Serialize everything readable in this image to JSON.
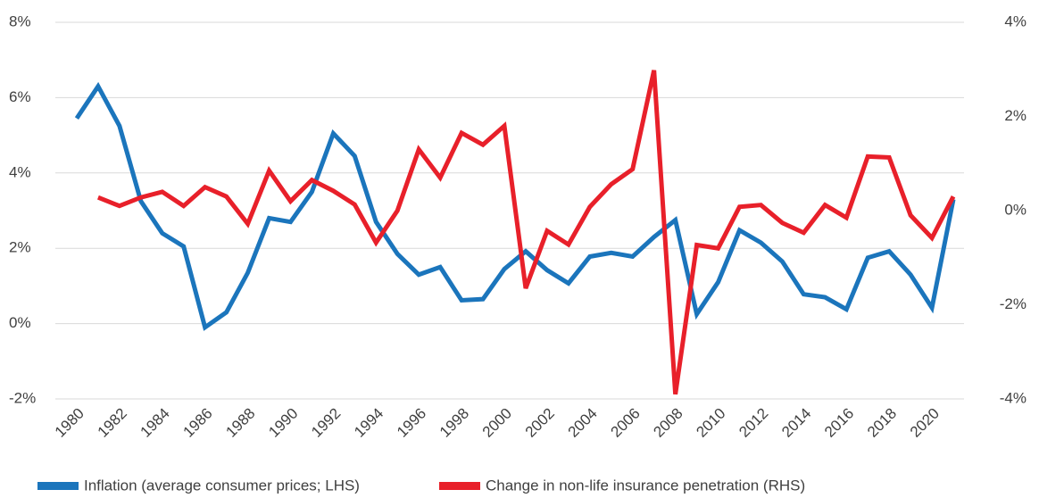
{
  "chart_data": {
    "type": "line",
    "x": [
      1980,
      1981,
      1982,
      1983,
      1984,
      1985,
      1986,
      1987,
      1988,
      1989,
      1990,
      1991,
      1992,
      1993,
      1994,
      1995,
      1996,
      1997,
      1998,
      1999,
      2000,
      2001,
      2002,
      2003,
      2004,
      2005,
      2006,
      2007,
      2008,
      2009,
      2010,
      2011,
      2012,
      2013,
      2014,
      2015,
      2016,
      2017,
      2018,
      2019,
      2020,
      2021
    ],
    "xlim": [
      1979,
      2021.5
    ],
    "xticks": [
      1980,
      1982,
      1984,
      1986,
      1988,
      1990,
      1992,
      1994,
      1996,
      1998,
      2000,
      2002,
      2004,
      2006,
      2008,
      2010,
      2012,
      2014,
      2016,
      2018,
      2020
    ],
    "ylim": [
      -2,
      8
    ],
    "yticks": [
      {
        "value": -2,
        "label": "-2%"
      },
      {
        "value": 0,
        "label": "0%"
      },
      {
        "value": 2,
        "label": "2%"
      },
      {
        "value": 4,
        "label": "4%"
      },
      {
        "value": 6,
        "label": "6%"
      },
      {
        "value": 8,
        "label": "8%"
      }
    ],
    "y2lim": [
      -4,
      4
    ],
    "y2ticks": [
      {
        "value": -4,
        "label": "-4%"
      },
      {
        "value": -2,
        "label": "-2%"
      },
      {
        "value": 0,
        "label": "0%"
      },
      {
        "value": 2,
        "label": "2%"
      },
      {
        "value": 4,
        "label": "4%"
      }
    ],
    "grid": true,
    "legend": "bottom",
    "series": [
      {
        "name": "Inflation (average consumer prices; LHS)",
        "color": "#1b75bc",
        "values": [
          5.45,
          6.3,
          5.25,
          3.25,
          2.4,
          2.05,
          -0.1,
          0.3,
          1.35,
          2.8,
          2.7,
          3.5,
          5.05,
          4.45,
          2.7,
          1.85,
          1.3,
          1.5,
          0.62,
          0.65,
          1.45,
          1.92,
          1.42,
          1.07,
          1.78,
          1.88,
          1.78,
          2.3,
          2.75,
          0.25,
          1.1,
          2.48,
          2.15,
          1.65,
          0.78,
          0.7,
          0.38,
          1.75,
          1.92,
          1.3,
          0.42,
          3.3
        ]
      },
      {
        "name": "Change in non-life insurance penetration (RHS)",
        "color": "#e8202a",
        "axis": "y2",
        "values": [
          null,
          0.28,
          0.1,
          0.28,
          0.4,
          0.1,
          0.5,
          0.3,
          -0.28,
          0.85,
          0.2,
          0.65,
          0.42,
          0.13,
          -0.68,
          0,
          1.3,
          0.7,
          1.65,
          1.4,
          1.8,
          -1.65,
          -0.43,
          -0.72,
          0.08,
          0.56,
          0.88,
          2.98,
          -3.9,
          -0.73,
          -0.8,
          0.08,
          0.12,
          -0.26,
          -0.47,
          0.12,
          -0.15,
          1.15,
          1.13,
          -0.1,
          -0.58,
          0.3
        ]
      }
    ]
  }
}
